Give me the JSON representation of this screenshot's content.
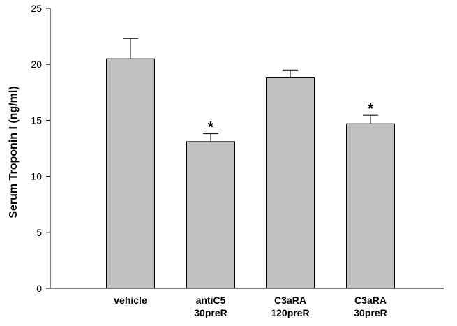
{
  "chart_data": {
    "type": "bar",
    "title": "",
    "xlabel": "",
    "ylabel": "Serum Troponin I (ng/ml)",
    "ylim": [
      0,
      25
    ],
    "yticks": [
      "0",
      "5",
      "10",
      "15",
      "20",
      "25"
    ],
    "grid": false,
    "categories": [
      {
        "line1": "vehicle",
        "line2": ""
      },
      {
        "line1": "antiC5",
        "line2": "30preR"
      },
      {
        "line1": "C3aRA",
        "line2": "120preR"
      },
      {
        "line1": "C3aRA",
        "line2": "30preR"
      }
    ],
    "values": [
      20.5,
      13.1,
      18.8,
      14.7
    ],
    "errors": [
      1.8,
      0.7,
      0.7,
      0.75
    ],
    "annotations": [
      "",
      "*",
      "",
      "*"
    ],
    "colors": {
      "bar_fill": "#c0c0c0",
      "bar_stroke": "#000000",
      "axis": "#000000"
    }
  }
}
